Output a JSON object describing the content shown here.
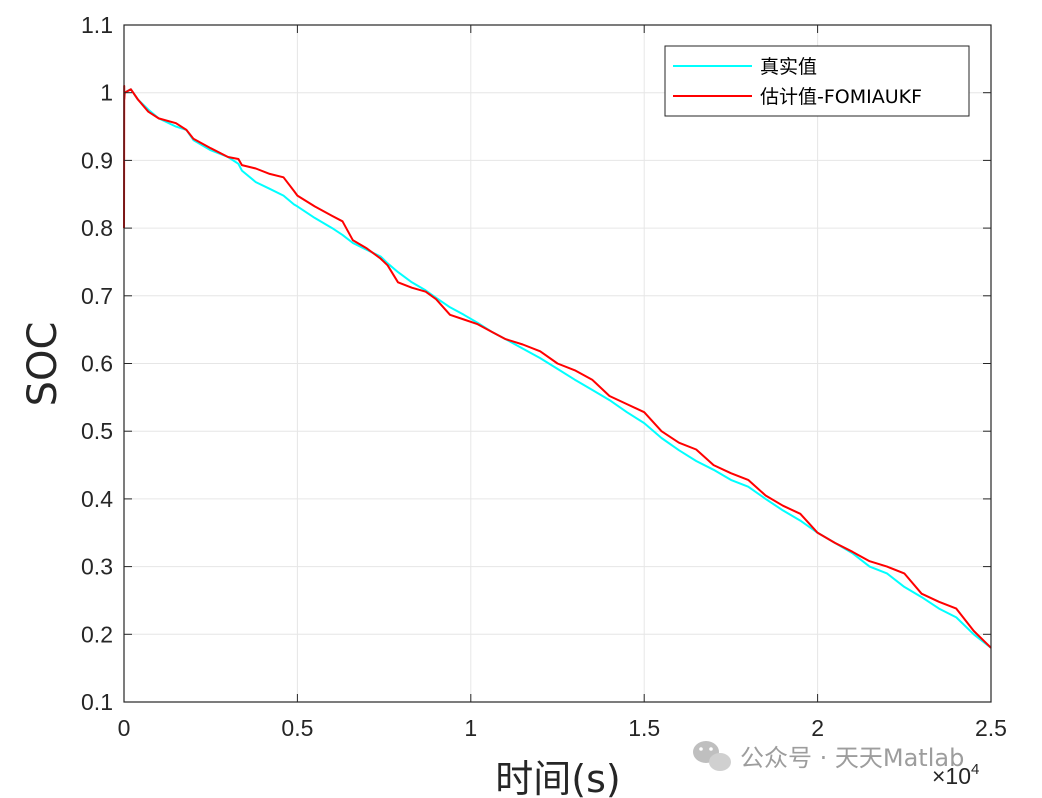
{
  "chart_data": {
    "type": "line",
    "xlabel": "时间(s)",
    "ylabel": "SOC",
    "x_exponent_label": "×10",
    "x_exponent_power": "4",
    "xlim": [
      0,
      25000
    ],
    "ylim": [
      0.1,
      1.1
    ],
    "xticks": [
      0,
      5000,
      10000,
      15000,
      20000,
      25000
    ],
    "xtick_labels": [
      "0",
      "0.5",
      "1",
      "1.5",
      "2",
      "2.5"
    ],
    "yticks": [
      0.1,
      0.2,
      0.3,
      0.4,
      0.5,
      0.6,
      0.7,
      0.8,
      0.9,
      1.0,
      1.1
    ],
    "ytick_labels": [
      "0.1",
      "0.2",
      "0.3",
      "0.4",
      "0.5",
      "0.6",
      "0.7",
      "0.8",
      "0.9",
      "1",
      "1.1"
    ],
    "grid": true,
    "legend_position": "top-right",
    "series": [
      {
        "name": "真实值",
        "color": "#00ffff",
        "x": [
          0,
          200,
          400,
          700,
          1000,
          1500,
          1800,
          2000,
          2500,
          3000,
          3300,
          3400,
          3800,
          4200,
          4600,
          4900,
          5000,
          5500,
          6000,
          6300,
          6600,
          7000,
          7400,
          7600,
          7900,
          8300,
          8700,
          9000,
          9400,
          9800,
          10200,
          10600,
          11000,
          11500,
          12000,
          12500,
          13000,
          13500,
          14000,
          14500,
          15000,
          15500,
          16000,
          16500,
          17000,
          17500,
          18000,
          18500,
          19000,
          19500,
          20000,
          20500,
          21000,
          21500,
          22000,
          22500,
          23000,
          23500,
          24000,
          24500,
          25000
        ],
        "y": [
          1.0,
          1.005,
          0.99,
          0.975,
          0.962,
          0.95,
          0.945,
          0.93,
          0.915,
          0.905,
          0.895,
          0.885,
          0.868,
          0.858,
          0.848,
          0.835,
          0.832,
          0.815,
          0.8,
          0.79,
          0.778,
          0.768,
          0.758,
          0.748,
          0.735,
          0.72,
          0.708,
          0.697,
          0.683,
          0.672,
          0.66,
          0.647,
          0.636,
          0.622,
          0.608,
          0.592,
          0.576,
          0.561,
          0.546,
          0.528,
          0.512,
          0.49,
          0.472,
          0.456,
          0.443,
          0.428,
          0.418,
          0.4,
          0.383,
          0.368,
          0.35,
          0.335,
          0.32,
          0.3,
          0.29,
          0.27,
          0.255,
          0.238,
          0.225,
          0.2,
          0.18
        ]
      },
      {
        "name": "估计值-FOMIAUKF",
        "color": "#ff0000",
        "x": [
          0,
          5,
          10,
          20,
          200,
          400,
          700,
          1000,
          1500,
          1800,
          2000,
          2500,
          3000,
          3300,
          3400,
          3800,
          4200,
          4600,
          4900,
          5000,
          5500,
          6000,
          6300,
          6600,
          7000,
          7400,
          7600,
          7900,
          8300,
          8700,
          9000,
          9400,
          9800,
          10200,
          10600,
          11000,
          11500,
          12000,
          12500,
          13000,
          13500,
          14000,
          14500,
          15000,
          15500,
          16000,
          16500,
          17000,
          17500,
          18000,
          18500,
          19000,
          19500,
          20000,
          20500,
          21000,
          21500,
          22000,
          22500,
          23000,
          23500,
          24000,
          24500,
          25000
        ],
        "y": [
          0.8,
          1.01,
          0.99,
          1.0,
          1.005,
          0.99,
          0.972,
          0.962,
          0.955,
          0.945,
          0.932,
          0.918,
          0.905,
          0.902,
          0.893,
          0.888,
          0.88,
          0.875,
          0.855,
          0.848,
          0.832,
          0.818,
          0.81,
          0.782,
          0.77,
          0.755,
          0.745,
          0.72,
          0.712,
          0.706,
          0.695,
          0.672,
          0.665,
          0.658,
          0.647,
          0.636,
          0.628,
          0.618,
          0.6,
          0.59,
          0.576,
          0.552,
          0.54,
          0.528,
          0.5,
          0.483,
          0.473,
          0.45,
          0.438,
          0.428,
          0.405,
          0.39,
          0.378,
          0.35,
          0.335,
          0.322,
          0.308,
          0.3,
          0.29,
          0.26,
          0.248,
          0.238,
          0.205,
          0.18
        ]
      }
    ]
  },
  "watermark": {
    "text": "公众号 · 天天Matlab",
    "icon": "wechat-icon"
  }
}
